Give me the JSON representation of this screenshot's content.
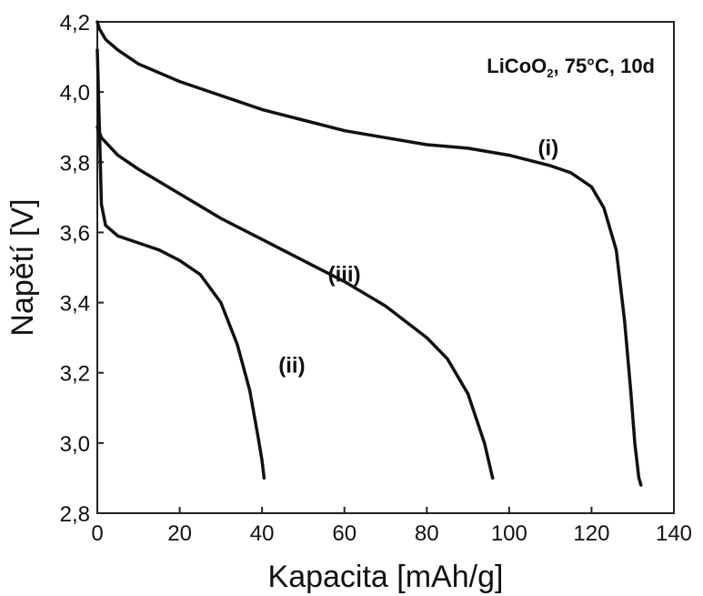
{
  "chart_data": {
    "type": "line",
    "title": "",
    "annotation": {
      "prefix": "LiCoO",
      "subscript": "2",
      "suffix": ", 75°C, 10d"
    },
    "xlabel": "Kapacita [mAh/g]",
    "ylabel": "Napětí [V]",
    "xlim": [
      0,
      140
    ],
    "ylim": [
      2.8,
      4.2
    ],
    "x_ticks": [
      0,
      20,
      40,
      60,
      80,
      100,
      120,
      140
    ],
    "x_tick_labels": [
      "0",
      "20",
      "40",
      "60",
      "80",
      "100",
      "120",
      "140"
    ],
    "y_ticks": [
      2.8,
      3.0,
      3.2,
      3.4,
      3.6,
      3.8,
      4.0,
      4.2
    ],
    "y_tick_labels": [
      "2,8",
      "3,0",
      "3,2",
      "3,4",
      "3,6",
      "3,8",
      "4,0",
      "4,2"
    ],
    "grid": false,
    "series": [
      {
        "name": "(i)",
        "label_at": [
          107,
          3.82
        ],
        "color": "#111111",
        "points": [
          [
            0,
            4.2
          ],
          [
            0.5,
            4.18
          ],
          [
            2,
            4.15
          ],
          [
            5,
            4.12
          ],
          [
            10,
            4.08
          ],
          [
            20,
            4.03
          ],
          [
            30,
            3.99
          ],
          [
            40,
            3.95
          ],
          [
            50,
            3.92
          ],
          [
            60,
            3.89
          ],
          [
            70,
            3.87
          ],
          [
            80,
            3.85
          ],
          [
            90,
            3.84
          ],
          [
            100,
            3.82
          ],
          [
            110,
            3.79
          ],
          [
            115,
            3.77
          ],
          [
            120,
            3.73
          ],
          [
            123,
            3.67
          ],
          [
            126,
            3.55
          ],
          [
            128,
            3.35
          ],
          [
            129.5,
            3.15
          ],
          [
            130.5,
            3.0
          ],
          [
            131.5,
            2.9
          ],
          [
            132,
            2.88
          ]
        ]
      },
      {
        "name": "(ii)",
        "label_at": [
          44,
          3.2
        ],
        "color": "#111111",
        "points": [
          [
            0,
            4.12
          ],
          [
            0.5,
            3.9
          ],
          [
            1,
            3.68
          ],
          [
            2,
            3.62
          ],
          [
            5,
            3.59
          ],
          [
            10,
            3.57
          ],
          [
            15,
            3.55
          ],
          [
            20,
            3.52
          ],
          [
            25,
            3.48
          ],
          [
            30,
            3.4
          ],
          [
            34,
            3.28
          ],
          [
            37,
            3.15
          ],
          [
            39,
            3.02
          ],
          [
            40,
            2.95
          ],
          [
            40.5,
            2.9
          ]
        ]
      },
      {
        "name": "(iii)",
        "label_at": [
          56,
          3.46
        ],
        "color": "#111111",
        "points": [
          [
            0,
            3.9
          ],
          [
            1,
            3.87
          ],
          [
            5,
            3.82
          ],
          [
            10,
            3.78
          ],
          [
            20,
            3.71
          ],
          [
            30,
            3.64
          ],
          [
            40,
            3.58
          ],
          [
            50,
            3.52
          ],
          [
            60,
            3.46
          ],
          [
            70,
            3.39
          ],
          [
            80,
            3.3
          ],
          [
            85,
            3.24
          ],
          [
            90,
            3.14
          ],
          [
            94,
            3.0
          ],
          [
            96,
            2.9
          ]
        ]
      }
    ]
  }
}
